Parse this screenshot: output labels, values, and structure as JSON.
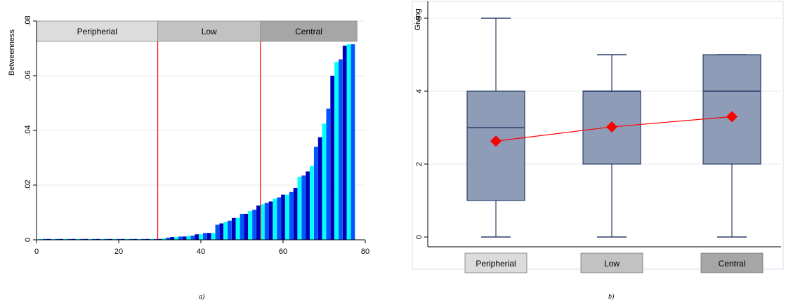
{
  "chart_data": [
    {
      "type": "bar",
      "panel_label": "a)",
      "ylabel": "Betweenness",
      "xlabel": "",
      "xlim": [
        0,
        80
      ],
      "ylim": [
        0,
        0.08
      ],
      "x_ticks": [
        0,
        20,
        40,
        60,
        80
      ],
      "x_tick_labels": [
        "0",
        "20",
        "40",
        "60",
        "80"
      ],
      "y_ticks": [
        0,
        0.02,
        0.04,
        0.06,
        0.08
      ],
      "y_tick_labels": [
        "0",
        ".02",
        ".04",
        ".06",
        ".08"
      ],
      "grid": "horizontal",
      "bar_colors": [
        "#00ffff",
        "#0055ff",
        "#0000b8"
      ],
      "divider_color": "#ff0000",
      "divider_lines_x": [
        29.5,
        54.5
      ],
      "group_labels": [
        {
          "label": "Peripherial",
          "from": 0,
          "to": 29.5,
          "fill": "#dcdcdc"
        },
        {
          "label": "Low",
          "from": 29.5,
          "to": 54.5,
          "fill": "#c2c2c2"
        },
        {
          "label": "Central",
          "from": 54.5,
          "to": 78,
          "fill": "#a6a6a6"
        }
      ],
      "x": [
        1,
        2,
        3,
        4,
        5,
        6,
        7,
        8,
        9,
        10,
        11,
        12,
        13,
        14,
        15,
        16,
        17,
        18,
        19,
        20,
        21,
        22,
        23,
        24,
        25,
        26,
        27,
        28,
        29,
        30,
        31,
        32,
        33,
        34,
        35,
        36,
        37,
        38,
        39,
        40,
        41,
        42,
        43,
        44,
        45,
        46,
        47,
        48,
        49,
        50,
        51,
        52,
        53,
        54,
        55,
        56,
        57,
        58,
        59,
        60,
        61,
        62,
        63,
        64,
        65,
        66,
        67,
        68,
        69,
        70,
        71,
        72,
        73,
        74,
        75,
        76,
        77
      ],
      "values": [
        0,
        0,
        0,
        0,
        0,
        0,
        0,
        0,
        0,
        0,
        0,
        0,
        0,
        0,
        0,
        0,
        0,
        0,
        0,
        0,
        0,
        0,
        0,
        0,
        0,
        0,
        0,
        0,
        0,
        0.0003,
        0.0005,
        0.0008,
        0.001,
        0.001,
        0.0012,
        0.0012,
        0.0015,
        0.0015,
        0.002,
        0.002,
        0.0025,
        0.0025,
        0.0025,
        0.0055,
        0.006,
        0.0065,
        0.007,
        0.008,
        0.008,
        0.0095,
        0.0095,
        0.0105,
        0.011,
        0.0125,
        0.013,
        0.0135,
        0.014,
        0.015,
        0.0155,
        0.0165,
        0.0165,
        0.0175,
        0.019,
        0.023,
        0.0235,
        0.025,
        0.027,
        0.034,
        0.0375,
        0.0425,
        0.048,
        0.06,
        0.065,
        0.066,
        0.071,
        0.0715,
        0.0715
      ]
    },
    {
      "type": "box",
      "panel_label": "b)",
      "ylabel": "Giving",
      "xlabel": "",
      "ylim": [
        0,
        6
      ],
      "y_ticks": [
        0,
        2,
        4,
        6
      ],
      "y_tick_labels": [
        "0",
        "2",
        "4",
        "6"
      ],
      "grid": "horizontal",
      "box_fill": "#8e9cb8",
      "box_stroke": "#2b3f6a",
      "mean_color": "#ff0000",
      "categories": [
        "Peripherial",
        "Low",
        "Central"
      ],
      "category_fills": [
        "#dcdcdc",
        "#c2c2c2",
        "#a6a6a6"
      ],
      "boxes": [
        {
          "min": 0,
          "q1": 1,
          "median": 3,
          "q3": 4,
          "max": 6
        },
        {
          "min": 0,
          "q1": 2,
          "median": 4,
          "q3": 4,
          "max": 5
        },
        {
          "min": 0,
          "q1": 2,
          "median": 4,
          "q3": 5,
          "max": 5
        }
      ],
      "means": [
        2.63,
        3.02,
        3.3
      ]
    }
  ]
}
